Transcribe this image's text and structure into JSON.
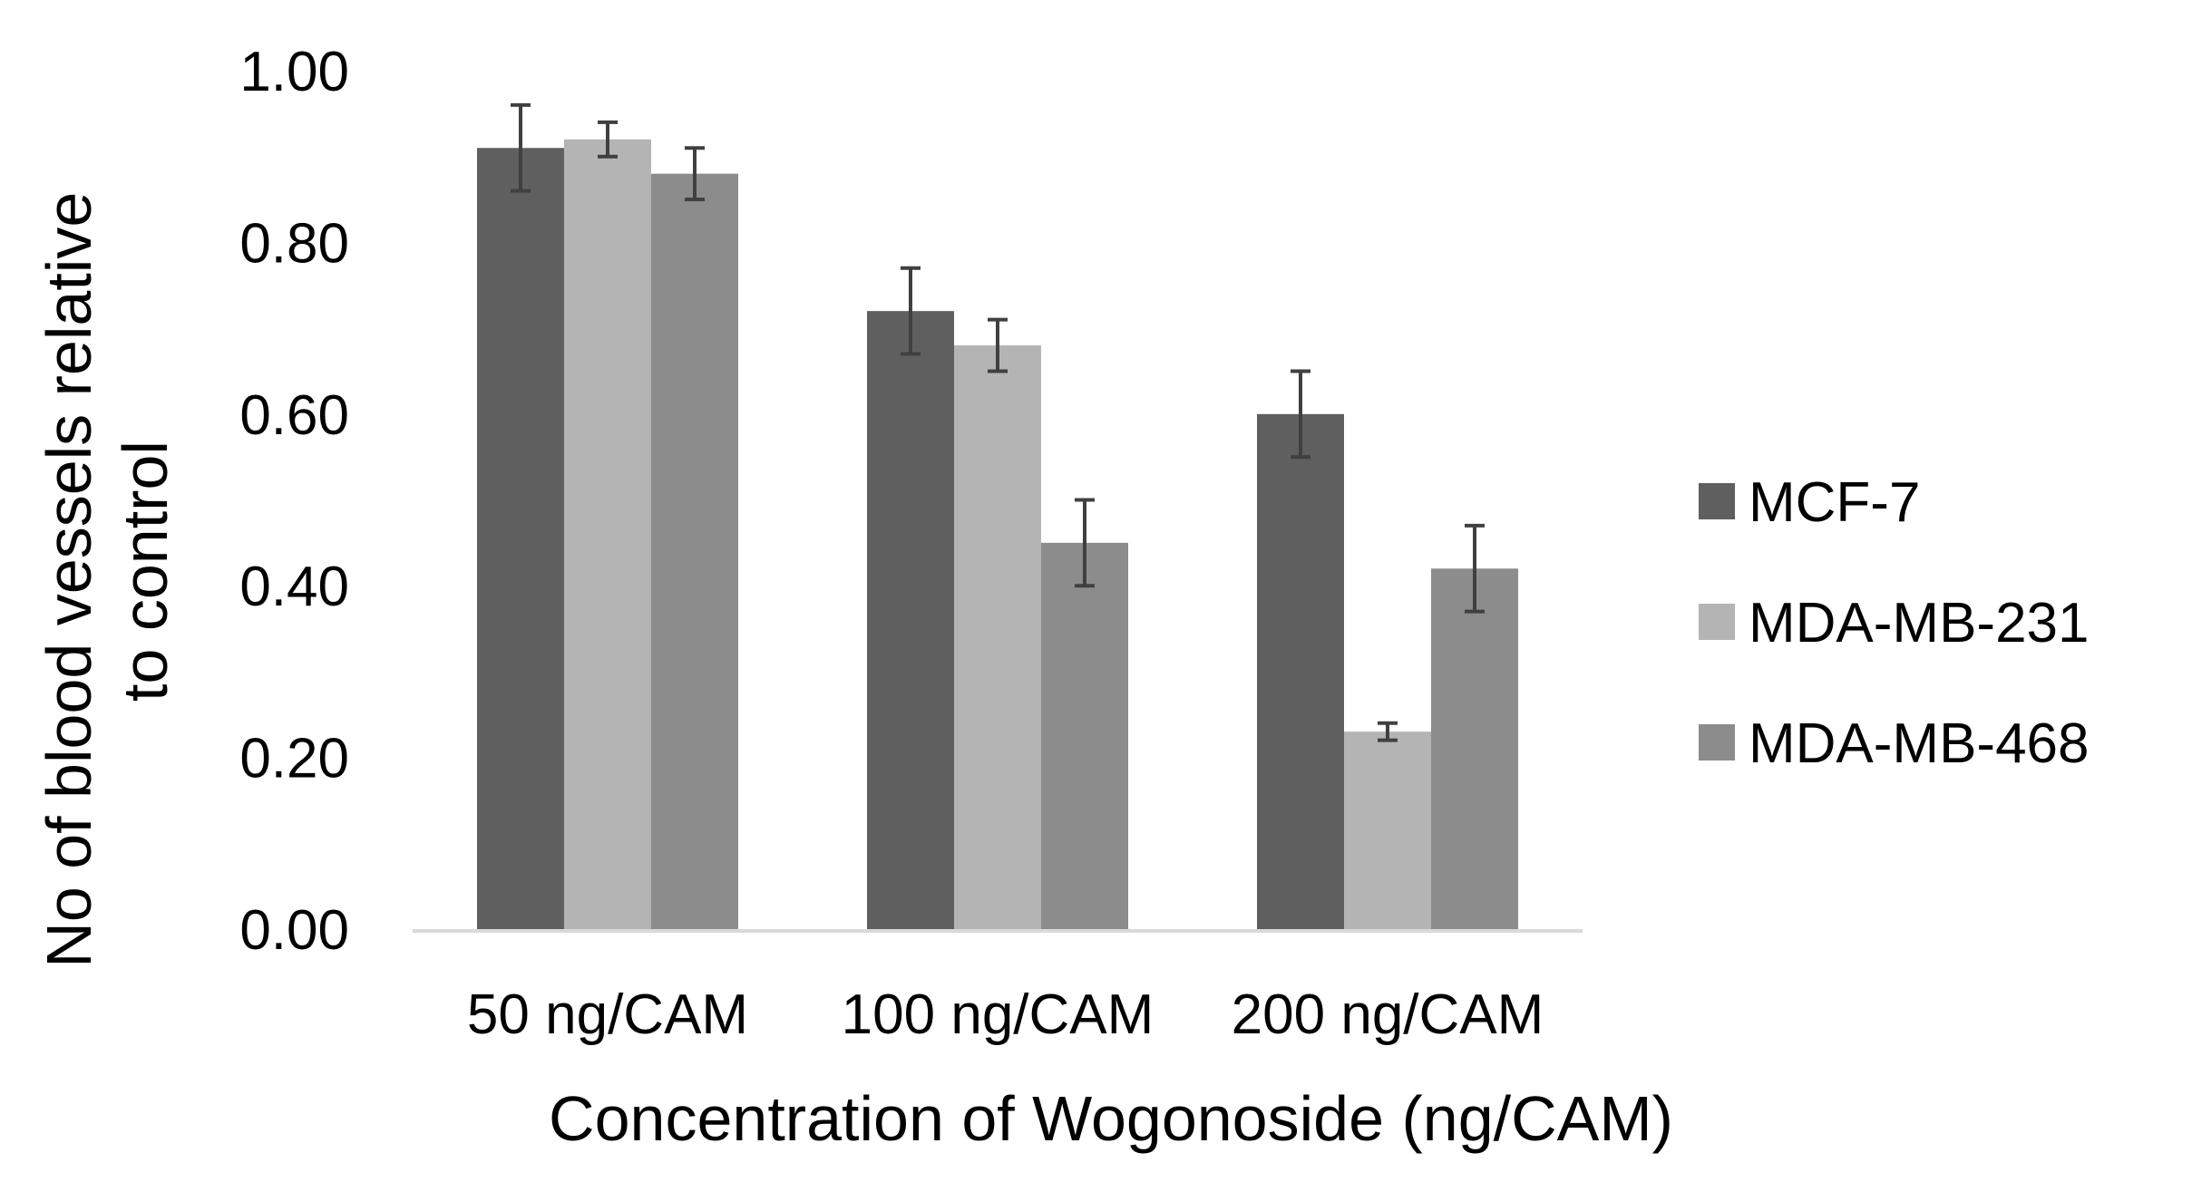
{
  "chart_data": {
    "type": "bar",
    "title": "",
    "xlabel": "Concentration of Wogonoside (ng/CAM)",
    "ylabel_lines": [
      "No of blood vessels relative",
      "to control"
    ],
    "categories": [
      "50 ng/CAM",
      "100 ng/CAM",
      "200 ng/CAM"
    ],
    "ylim": [
      0,
      1
    ],
    "yticks": [
      "0.00",
      "0.20",
      "0.40",
      "0.60",
      "0.80",
      "1.00"
    ],
    "grid": false,
    "legend_position": "right",
    "series": [
      {
        "name": "MCF-7",
        "color": "#5f5f5f",
        "values": [
          0.91,
          0.72,
          0.6
        ],
        "errors": [
          0.05,
          0.05,
          0.05
        ]
      },
      {
        "name": "MDA-MB-231",
        "color": "#b4b4b4",
        "values": [
          0.92,
          0.68,
          0.23
        ],
        "errors": [
          0.02,
          0.03,
          0.01
        ]
      },
      {
        "name": "MDA-MB-468",
        "color": "#8c8c8c",
        "values": [
          0.88,
          0.45,
          0.42
        ],
        "errors": [
          0.03,
          0.05,
          0.05
        ]
      }
    ]
  }
}
